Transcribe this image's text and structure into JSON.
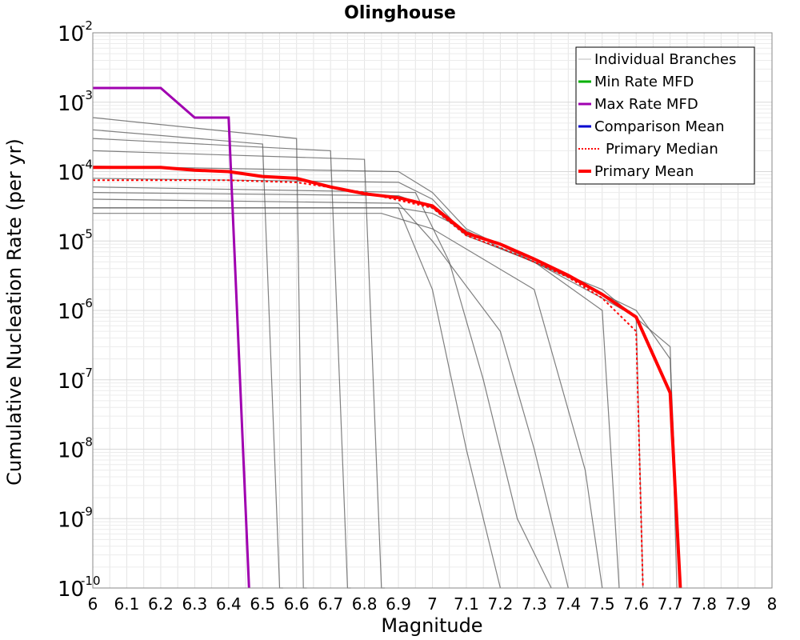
{
  "chart_data": {
    "type": "line",
    "title": "Olinghouse",
    "xlabel": "Magnitude",
    "ylabel": "Cumulative Nucleation Rate (per yr)",
    "xlim": [
      6,
      8
    ],
    "ylim": [
      1e-10,
      0.01
    ],
    "yscale": "log",
    "grid": true,
    "legend_position": "top-right",
    "x_ticks": [
      "6",
      "6.1",
      "6.2",
      "6.3",
      "6.4",
      "6.5",
      "6.6",
      "6.7",
      "6.8",
      "6.9",
      "7",
      "7.1",
      "7.2",
      "7.3",
      "7.4",
      "7.5",
      "7.6",
      "7.7",
      "7.8",
      "7.9",
      "8"
    ],
    "y_ticks": [
      {
        "value": 1e-10,
        "base": "10",
        "exp": "-10"
      },
      {
        "value": 1e-09,
        "base": "10",
        "exp": "-9"
      },
      {
        "value": 1e-08,
        "base": "10",
        "exp": "-8"
      },
      {
        "value": 1e-07,
        "base": "10",
        "exp": "-7"
      },
      {
        "value": 1e-06,
        "base": "10",
        "exp": "-6"
      },
      {
        "value": 1e-05,
        "base": "10",
        "exp": "-5"
      },
      {
        "value": 0.0001,
        "base": "10",
        "exp": "-4"
      },
      {
        "value": 0.001,
        "base": "10",
        "exp": "-3"
      },
      {
        "value": 0.01,
        "base": "10",
        "exp": "-2"
      }
    ],
    "series": [
      {
        "name": "Individual Branches",
        "color": "#555555",
        "style": "solid-thin",
        "note_count": "many",
        "representative_branches": [
          {
            "x": [
              6.0,
              6.6,
              6.62,
              6.63
            ],
            "y": [
              0.0006,
              0.0003,
              1e-10,
              1e-10
            ]
          },
          {
            "x": [
              6.0,
              6.5,
              6.55,
              6.56
            ],
            "y": [
              0.0004,
              0.00025,
              1e-10,
              1e-10
            ]
          },
          {
            "x": [
              6.0,
              6.7,
              6.75,
              6.76
            ],
            "y": [
              0.0003,
              0.0002,
              1e-10,
              1e-10
            ]
          },
          {
            "x": [
              6.0,
              6.8,
              6.85,
              6.86
            ],
            "y": [
              0.0002,
              0.00015,
              1e-10,
              1e-10
            ]
          },
          {
            "x": [
              6.0,
              6.9,
              7.0,
              7.1,
              7.3,
              7.5,
              7.55
            ],
            "y": [
              0.00012,
              0.0001,
              5e-05,
              1.5e-05,
              5e-06,
              1e-06,
              1e-10
            ]
          },
          {
            "x": [
              6.0,
              6.9,
              7.0,
              7.1,
              7.3,
              7.5,
              7.6,
              7.62
            ],
            "y": [
              8e-05,
              7e-05,
              4e-05,
              1.2e-05,
              5e-06,
              1.5e-06,
              8e-07,
              1e-10
            ]
          },
          {
            "x": [
              6.0,
              6.9,
              7.0,
              7.1,
              7.3,
              7.5,
              7.7,
              7.72
            ],
            "y": [
              5e-05,
              4.5e-05,
              3e-05,
              1.2e-05,
              5e-06,
              2e-06,
              3e-07,
              1e-10
            ]
          },
          {
            "x": [
              6.0,
              6.9,
              7.0,
              7.2,
              7.4,
              7.6,
              7.7,
              7.73
            ],
            "y": [
              3e-05,
              3e-05,
              2.5e-05,
              8e-06,
              3e-06,
              1e-06,
              2e-07,
              1e-10
            ]
          },
          {
            "x": [
              6.0,
              6.9,
              7.0,
              7.2,
              7.3,
              7.4
            ],
            "y": [
              4e-05,
              3.5e-05,
              1e-05,
              5e-07,
              1e-08,
              1e-10
            ]
          },
          {
            "x": [
              6.0,
              6.95,
              7.05,
              7.15,
              7.25,
              7.35
            ],
            "y": [
              6e-05,
              5e-05,
              5e-06,
              1e-07,
              1e-09,
              1e-10
            ]
          },
          {
            "x": [
              6.0,
              6.9,
              7.0,
              7.1,
              7.2
            ],
            "y": [
              3e-05,
              3e-05,
              2e-06,
              1e-08,
              1e-10
            ]
          },
          {
            "x": [
              6.0,
              6.85,
              7.0,
              7.3,
              7.45,
              7.5
            ],
            "y": [
              2.5e-05,
              2.5e-05,
              1.5e-05,
              2e-06,
              5e-09,
              1e-10
            ]
          }
        ]
      },
      {
        "name": "Min Rate MFD",
        "color": "#00b000",
        "style": "solid"
      },
      {
        "name": "Max Rate MFD",
        "color": "#a000b0",
        "style": "solid",
        "x": [
          6.0,
          6.2,
          6.3,
          6.4,
          6.46
        ],
        "y": [
          0.0016,
          0.0016,
          0.0006,
          0.0006,
          1e-10
        ]
      },
      {
        "name": "Comparison Mean",
        "color": "#0000d0",
        "style": "solid"
      },
      {
        "name": "Primary Median",
        "color": "#ff0000",
        "style": "dotted",
        "x": [
          6.0,
          6.2,
          6.4,
          6.6,
          6.8,
          7.0,
          7.1,
          7.2,
          7.3,
          7.4,
          7.5,
          7.6,
          7.62
        ],
        "y": [
          7.5e-05,
          7.5e-05,
          7.5e-05,
          7e-05,
          5e-05,
          3e-05,
          1.2e-05,
          8e-06,
          5e-06,
          3e-06,
          1.5e-06,
          5e-07,
          1e-10
        ]
      },
      {
        "name": "Primary Mean",
        "color": "#ff0000",
        "style": "solid-thick",
        "x": [
          6.0,
          6.2,
          6.3,
          6.4,
          6.5,
          6.6,
          6.7,
          6.8,
          6.9,
          7.0,
          7.1,
          7.2,
          7.3,
          7.4,
          7.5,
          7.6,
          7.7,
          7.73
        ],
        "y": [
          0.000115,
          0.000115,
          0.000105,
          0.0001,
          8.5e-05,
          8e-05,
          6e-05,
          4.8e-05,
          4.2e-05,
          3.2e-05,
          1.3e-05,
          9e-06,
          5.5e-06,
          3.2e-06,
          1.7e-06,
          8e-07,
          6.5e-08,
          1e-10
        ]
      }
    ]
  }
}
